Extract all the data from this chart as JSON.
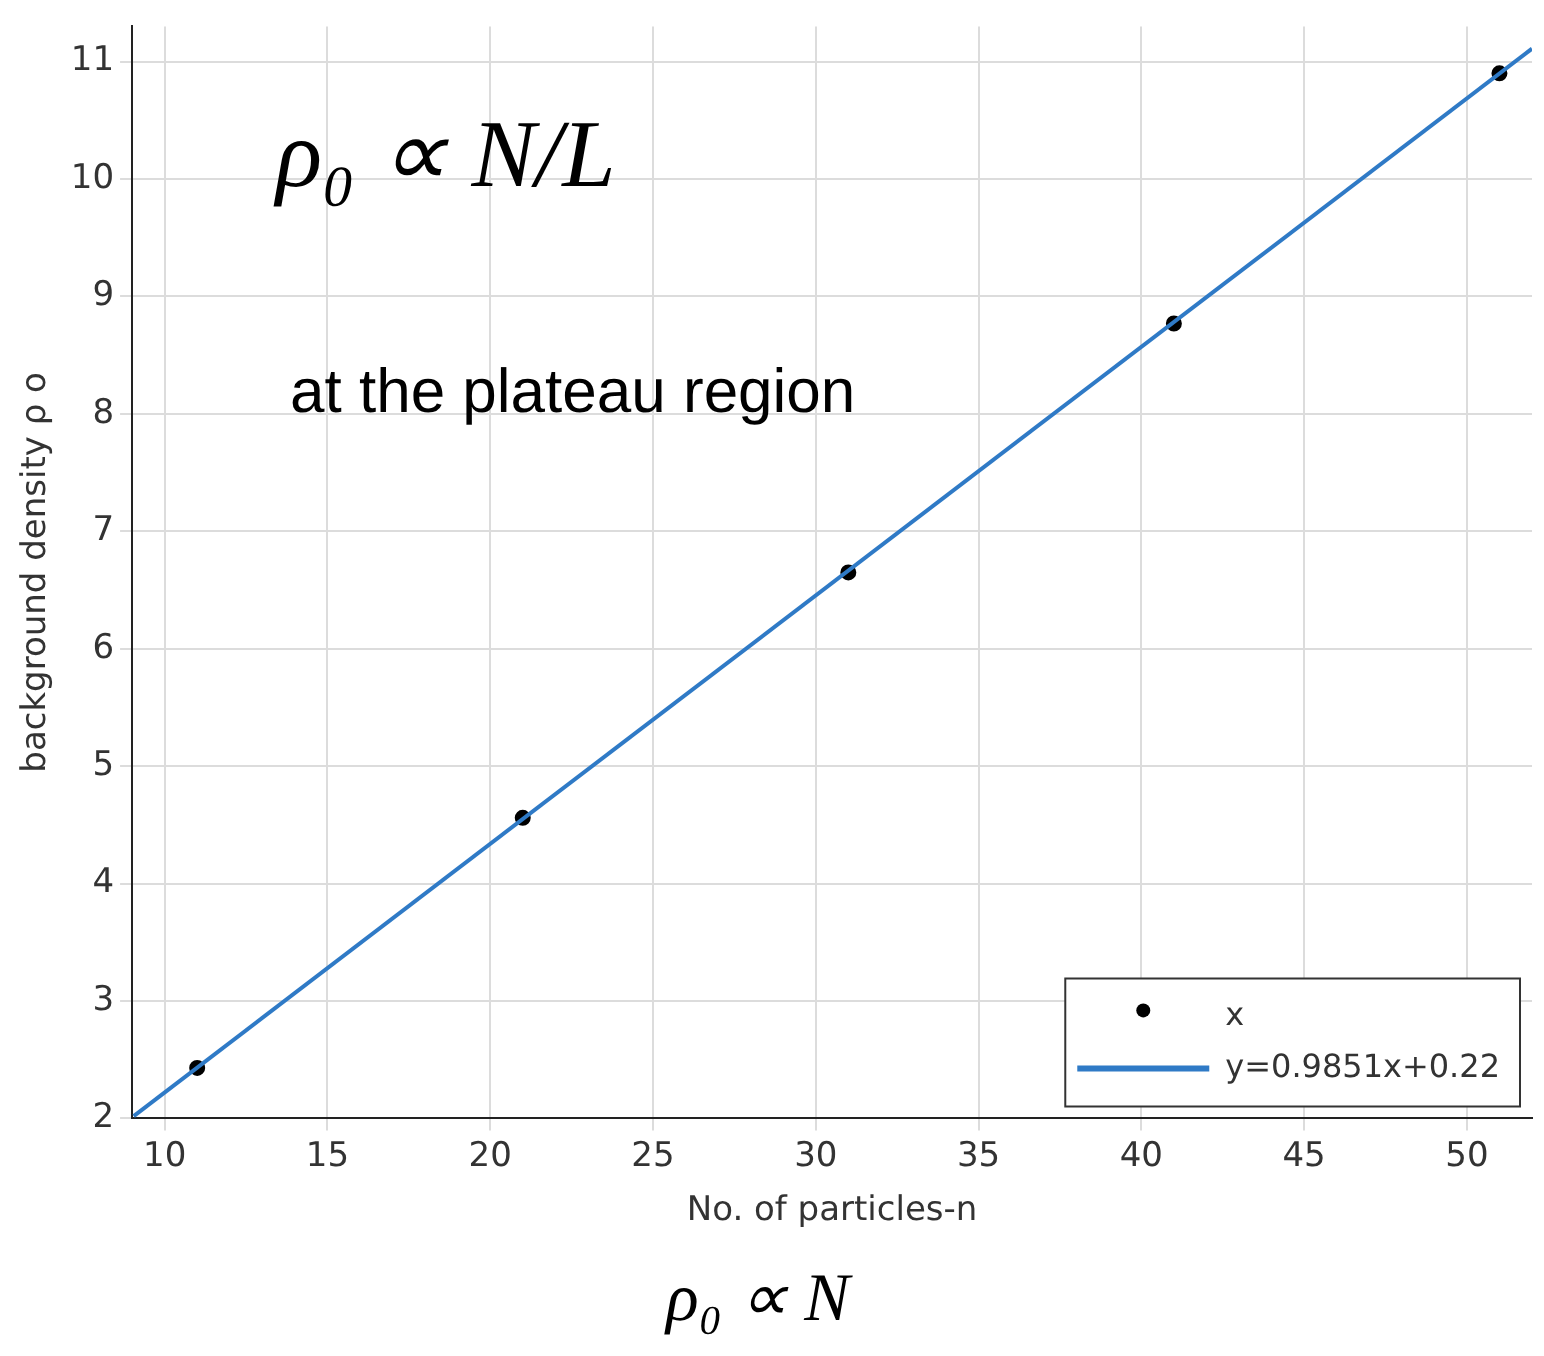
{
  "chart_data": {
    "type": "scatter",
    "xlabel": "No. of particles-n",
    "ylabel": "background density ρ o",
    "xlim": [
      9,
      52
    ],
    "xticks": [
      10,
      15,
      20,
      25,
      30,
      35,
      40,
      45,
      50
    ],
    "ylim": [
      2,
      11.3
    ],
    "yticks": [
      2,
      3,
      4,
      5,
      6,
      7,
      8,
      9,
      10,
      11
    ],
    "grid": true,
    "legend": "bottom right",
    "marker": "circle",
    "series": [
      {
        "name": "x",
        "type": "scatter",
        "color": "#000000",
        "x": [
          11,
          21,
          31,
          41,
          51
        ],
        "values": [
          2.43,
          4.56,
          6.65,
          8.77,
          10.9
        ]
      },
      {
        "name": "y=0.9851x+0.22",
        "type": "line",
        "color": "#2f7ac6",
        "marker": "none",
        "line_style": "solid",
        "x": [
          9.05,
          52
        ],
        "values": [
          2.02,
          11.11
        ]
      }
    ],
    "annotations": [
      "ρ₀ ∝ N/L",
      "at the plateau region",
      "ρ₀ ∝ N"
    ]
  }
}
